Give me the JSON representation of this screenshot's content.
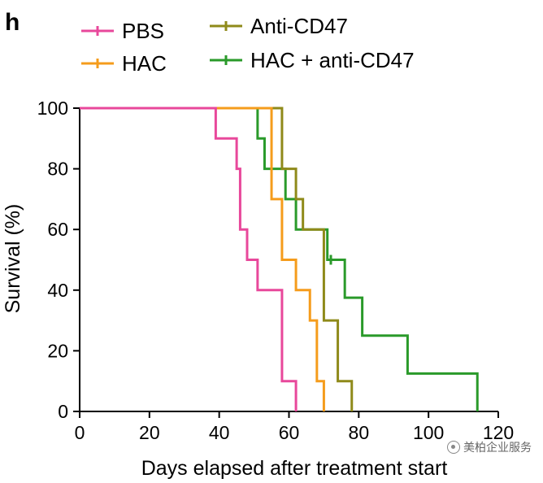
{
  "panel_label": "h",
  "colors": {
    "PBS": "#e8489b",
    "HAC": "#f59c1c",
    "Anti-CD47": "#8f8a1a",
    "HAC + anti-CD47": "#2a9a2a",
    "axis": "#000000"
  },
  "watermark": {
    "text": "美柏企业服务",
    "icon": "wechat-icon"
  },
  "chart_data": {
    "type": "line",
    "subtype": "kaplan-meier-step",
    "title": "",
    "xlabel": "Days elapsed after treatment start",
    "ylabel": "Survival (%)",
    "xlim": [
      0,
      120
    ],
    "ylim": [
      0,
      100
    ],
    "xticks": [
      0,
      20,
      40,
      60,
      80,
      100,
      120
    ],
    "yticks": [
      0,
      20,
      40,
      60,
      80,
      100
    ],
    "grid": false,
    "legend_position": "top",
    "series": [
      {
        "name": "PBS",
        "steps": [
          [
            0,
            100
          ],
          [
            39,
            90
          ],
          [
            45,
            80
          ],
          [
            46,
            60
          ],
          [
            48,
            50
          ],
          [
            51,
            40
          ],
          [
            58,
            10
          ],
          [
            62,
            0
          ]
        ],
        "censored": []
      },
      {
        "name": "HAC",
        "steps": [
          [
            0,
            100
          ],
          [
            39,
            100
          ],
          [
            55,
            70
          ],
          [
            58,
            50
          ],
          [
            62,
            40
          ],
          [
            66,
            30
          ],
          [
            68,
            10
          ],
          [
            70,
            0
          ]
        ],
        "censored": []
      },
      {
        "name": "Anti-CD47",
        "steps": [
          [
            0,
            100
          ],
          [
            39,
            100
          ],
          [
            58,
            80
          ],
          [
            62,
            70
          ],
          [
            64,
            60
          ],
          [
            70,
            30
          ],
          [
            74,
            10
          ],
          [
            78,
            0
          ]
        ],
        "censored": []
      },
      {
        "name": "HAC + anti-CD47",
        "steps": [
          [
            0,
            100
          ],
          [
            51,
            90
          ],
          [
            53,
            80
          ],
          [
            59,
            70
          ],
          [
            62,
            60
          ],
          [
            71,
            50
          ],
          [
            76,
            37.5
          ],
          [
            81,
            25
          ],
          [
            94,
            12.5
          ],
          [
            114,
            0
          ]
        ],
        "censored": [
          [
            72,
            50
          ]
        ]
      }
    ]
  }
}
